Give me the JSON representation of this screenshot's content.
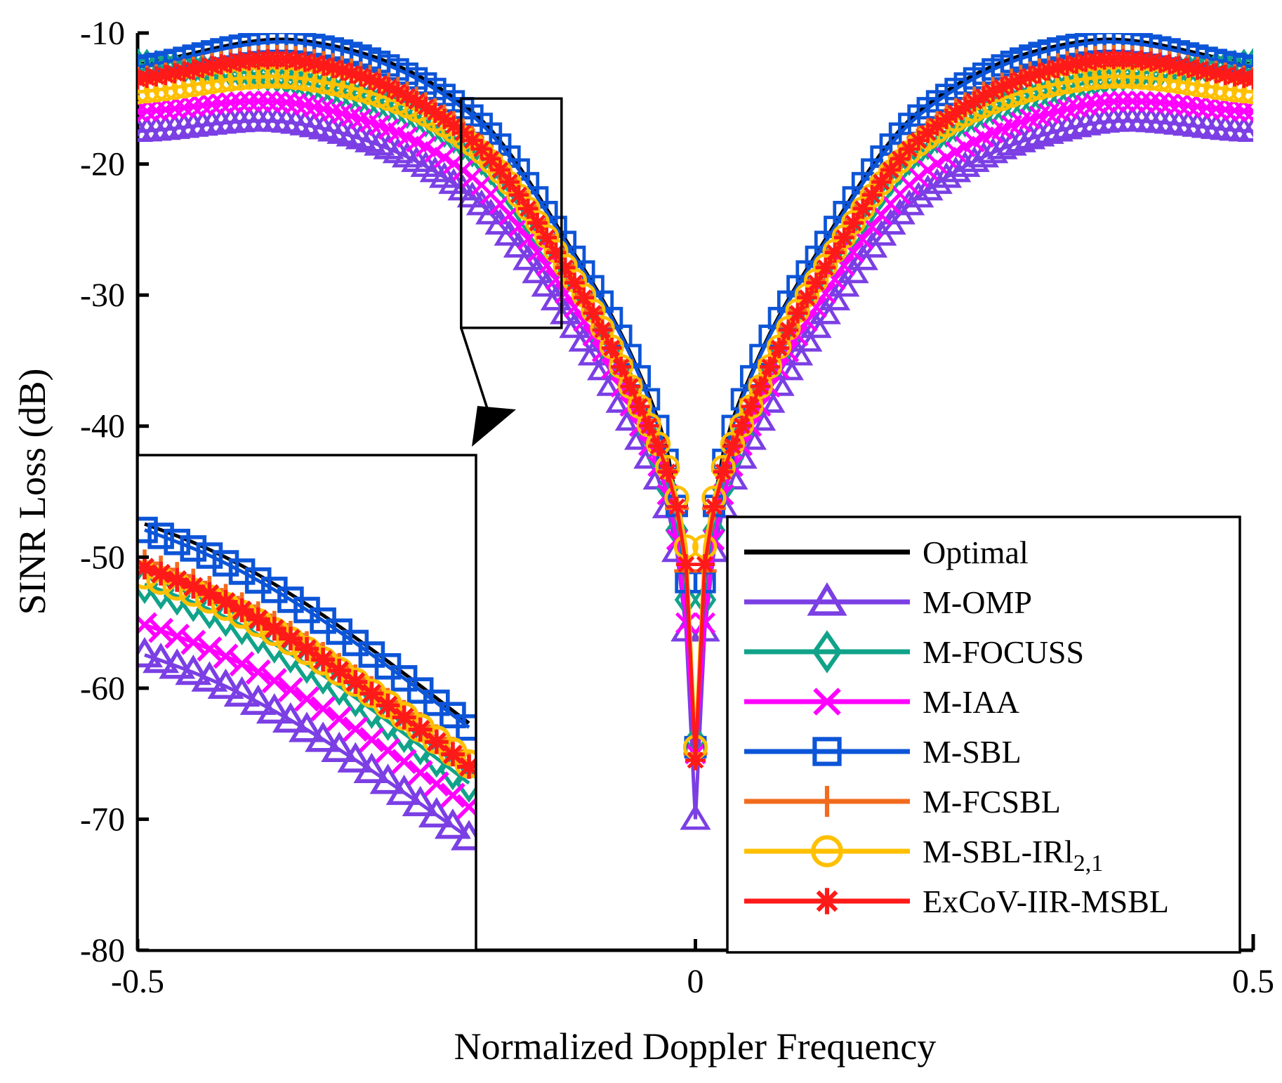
{
  "chart_data": {
    "type": "line",
    "title": "",
    "xlabel": "Normalized Doppler Frequency",
    "ylabel": "SINR Loss (dB)",
    "xlim": [
      -0.5,
      0.5
    ],
    "ylim": [
      -80,
      -10
    ],
    "xticks": [
      -0.5,
      0,
      0.5
    ],
    "xtick_labels": [
      "-0.5",
      "0",
      "0.5"
    ],
    "yticks": [
      -80,
      -70,
      -60,
      -50,
      -40,
      -30,
      -20,
      -10
    ],
    "ytick_labels": [
      "-80",
      "-70",
      "-60",
      "-50",
      "-40",
      "-30",
      "-20",
      "-10"
    ],
    "grid": false,
    "legend_position": "bottom-right",
    "zoom_box": {
      "x_range": [
        -0.21,
        -0.12
      ],
      "y_range": [
        -32.5,
        -15
      ],
      "inset": "bottom-left"
    },
    "series": [
      {
        "name": "Optimal",
        "color": "#000000",
        "marker": "none",
        "anchors": [
          [
            -0.5,
            -12.4
          ],
          [
            -0.35,
            -10.6
          ],
          [
            -0.2,
            -16
          ],
          [
            -0.1,
            -28
          ],
          [
            -0.05,
            -36
          ],
          [
            -0.02,
            -44
          ],
          [
            -0.005,
            -56
          ],
          [
            0,
            -65
          ]
        ]
      },
      {
        "name": "M-OMP",
        "color": "#7B3FE4",
        "marker": "triangle",
        "anchors": [
          [
            -0.5,
            -17.5
          ],
          [
            -0.35,
            -17
          ],
          [
            -0.2,
            -22.5
          ],
          [
            -0.1,
            -33.5
          ],
          [
            -0.05,
            -41
          ],
          [
            -0.02,
            -48
          ],
          [
            -0.005,
            -59
          ],
          [
            0,
            -70
          ]
        ]
      },
      {
        "name": "M-FOCUSS",
        "color": "#10A38A",
        "marker": "diamond",
        "anchors": [
          [
            -0.5,
            -12.4
          ],
          [
            -0.35,
            -13.8
          ],
          [
            -0.2,
            -19
          ],
          [
            -0.1,
            -31
          ],
          [
            -0.05,
            -39
          ],
          [
            -0.02,
            -46.5
          ],
          [
            -0.005,
            -56
          ],
          [
            0,
            -64
          ]
        ]
      },
      {
        "name": "M-IAA",
        "color": "#FF00FF",
        "marker": "x",
        "anchors": [
          [
            -0.5,
            -16
          ],
          [
            -0.35,
            -15.5
          ],
          [
            -0.2,
            -21
          ],
          [
            -0.1,
            -32
          ],
          [
            -0.05,
            -40
          ],
          [
            -0.02,
            -47
          ],
          [
            -0.005,
            -58
          ],
          [
            0,
            -65
          ]
        ]
      },
      {
        "name": "M-SBL",
        "color": "#0D55D8",
        "marker": "square",
        "anchors": [
          [
            -0.5,
            -12.6
          ],
          [
            -0.35,
            -10.8
          ],
          [
            -0.2,
            -16.3
          ],
          [
            -0.1,
            -28.2
          ],
          [
            -0.05,
            -36.2
          ],
          [
            -0.02,
            -44.5
          ],
          [
            -0.005,
            -55
          ],
          [
            0,
            -64.5
          ]
        ]
      },
      {
        "name": "M-FCSBL",
        "color": "#F26B1D",
        "marker": "plus",
        "anchors": [
          [
            -0.5,
            -13.5
          ],
          [
            -0.35,
            -12
          ],
          [
            -0.2,
            -18
          ],
          [
            -0.1,
            -30
          ],
          [
            -0.05,
            -38
          ],
          [
            -0.02,
            -45
          ],
          [
            -0.005,
            -54
          ],
          [
            0,
            -65
          ]
        ]
      },
      {
        "name": "M-SBL-IRl2,1",
        "color": "#FFC000",
        "marker": "circle",
        "anchors": [
          [
            -0.5,
            -14.5
          ],
          [
            -0.35,
            -13.5
          ],
          [
            -0.2,
            -18.5
          ],
          [
            -0.1,
            -30
          ],
          [
            -0.05,
            -38.5
          ],
          [
            -0.02,
            -44.5
          ],
          [
            -0.005,
            -52
          ],
          [
            0,
            -64.5
          ]
        ]
      },
      {
        "name": "ExCoV-IIR-MSBL",
        "color": "#FF1A1A",
        "marker": "asterisk",
        "anchors": [
          [
            -0.5,
            -13.5
          ],
          [
            -0.35,
            -12.2
          ],
          [
            -0.2,
            -18.2
          ],
          [
            -0.1,
            -30.2
          ],
          [
            -0.05,
            -38.5
          ],
          [
            -0.02,
            -45
          ],
          [
            -0.005,
            -53.5
          ],
          [
            0,
            -65.5
          ]
        ]
      }
    ],
    "legend": [
      {
        "label": "Optimal",
        "sub": ""
      },
      {
        "label": "M-OMP",
        "sub": ""
      },
      {
        "label": "M-FOCUSS",
        "sub": ""
      },
      {
        "label": "M-IAA",
        "sub": ""
      },
      {
        "label": "M-SBL",
        "sub": ""
      },
      {
        "label": "M-FCSBL",
        "sub": ""
      },
      {
        "label": "M-SBL-IRl",
        "sub": "2,1"
      },
      {
        "label": "ExCoV-IIR-MSBL",
        "sub": ""
      }
    ]
  }
}
